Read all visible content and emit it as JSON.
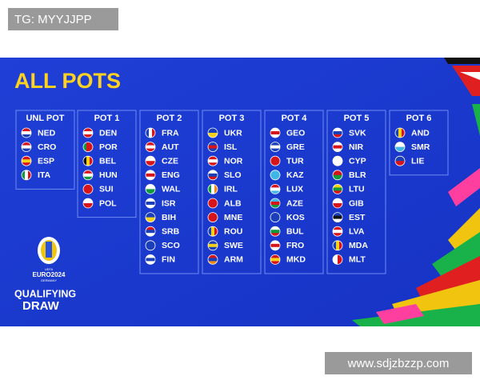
{
  "watermark_top": "TG: MYYJJPP",
  "title": "ALL POTS",
  "pots": [
    {
      "name": "UNL POT",
      "teams": [
        "NED",
        "CRO",
        "ESP",
        "ITA"
      ]
    },
    {
      "name": "POT 1",
      "teams": [
        "DEN",
        "POR",
        "BEL",
        "HUN",
        "SUI",
        "POL"
      ]
    },
    {
      "name": "POT 2",
      "teams": [
        "FRA",
        "AUT",
        "CZE",
        "ENG",
        "WAL",
        "ISR",
        "BIH",
        "SRB",
        "SCO",
        "FIN"
      ]
    },
    {
      "name": "POT 3",
      "teams": [
        "UKR",
        "ISL",
        "NOR",
        "SLO",
        "IRL",
        "ALB",
        "MNE",
        "ROU",
        "SWE",
        "ARM"
      ]
    },
    {
      "name": "POT 4",
      "teams": [
        "GEO",
        "GRE",
        "TUR",
        "KAZ",
        "LUX",
        "AZE",
        "KOS",
        "BUL",
        "FRO",
        "MKD"
      ]
    },
    {
      "name": "POT 5",
      "teams": [
        "SVK",
        "NIR",
        "CYP",
        "BLR",
        "LTU",
        "GIB",
        "EST",
        "LVA",
        "MDA",
        "MLT"
      ]
    },
    {
      "name": "POT 6",
      "teams": [
        "AND",
        "SMR",
        "LIE"
      ]
    }
  ],
  "logo": {
    "brand": "UEFA",
    "event": "EURO2024",
    "host": "GERMANY",
    "line1": "QUALIFYING",
    "line2": "DRAW"
  },
  "watermark_bottom": "www.sdjzbzzp.com"
}
